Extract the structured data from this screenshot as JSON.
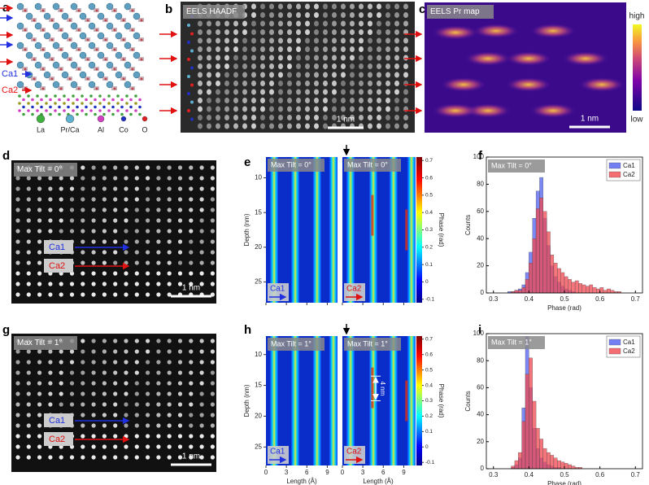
{
  "panel_labels": [
    "a",
    "b",
    "c",
    "d",
    "e",
    "f",
    "g",
    "h",
    "i"
  ],
  "structure_legend": [
    "La",
    "Pr/Ca",
    "Al",
    "Co",
    "O"
  ],
  "site_labels": [
    "Ca1",
    "Ca2"
  ],
  "image_titles": {
    "haadf": "EELS HAADF",
    "pr_map": "EELS Pr map"
  },
  "scale_bar": "1 nm",
  "pr_map_colorbar": {
    "high": "high",
    "low": "low"
  },
  "phase_maps": {
    "y_label": "Depth (nm)",
    "x_label": "Length (Å)",
    "colorbar_label": "Phase (rad)",
    "ylim": [
      7,
      28
    ],
    "yticks": [
      10,
      15,
      20,
      25
    ],
    "xlim": [
      0,
      10.5
    ],
    "xticks": [
      0,
      3,
      6,
      9
    ],
    "clim": [
      -0.12,
      0.72
    ],
    "cticks": [
      -0.1,
      0,
      0.1,
      0.2,
      0.3,
      0.4,
      0.5,
      0.6,
      0.7
    ],
    "annotation": "4 nm"
  },
  "chart_data": [
    {
      "type": "histogram",
      "title": "Max Tilt = 0°",
      "x_label": "Phase (rad)",
      "y_label": "Counts",
      "bins": [
        0.33,
        0.34,
        0.35,
        0.36,
        0.37,
        0.38,
        0.39,
        0.4,
        0.41,
        0.42,
        0.43,
        0.44,
        0.45,
        0.46,
        0.47,
        0.48,
        0.49,
        0.5,
        0.51,
        0.52,
        0.53,
        0.54,
        0.55,
        0.56,
        0.57,
        0.58,
        0.59,
        0.6,
        0.61,
        0.62,
        0.63,
        0.64,
        0.65,
        0.66,
        0.67
      ],
      "series": [
        {
          "name": "Ca1",
          "color": "#5060f0",
          "values": [
            0,
            1,
            1,
            2,
            3,
            6,
            15,
            30,
            55,
            75,
            85,
            55,
            35,
            20,
            12,
            8,
            5,
            3,
            2,
            1,
            0,
            0,
            0,
            0,
            0,
            0,
            0,
            0,
            0,
            0,
            0,
            0,
            0,
            0
          ]
        },
        {
          "name": "Ca2",
          "color": "#f04850",
          "values": [
            0,
            0,
            1,
            2,
            2,
            4,
            10,
            22,
            40,
            62,
            70,
            60,
            45,
            28,
            22,
            18,
            15,
            12,
            10,
            8,
            9,
            7,
            6,
            5,
            6,
            4,
            3,
            4,
            2,
            3,
            2,
            1,
            1,
            0
          ]
        }
      ],
      "xlim": [
        0.28,
        0.72
      ],
      "xticks": [
        0.3,
        0.4,
        0.5,
        0.6,
        0.7
      ],
      "ylim": [
        0,
        100
      ],
      "yticks": [
        0,
        20,
        40,
        60,
        80,
        100
      ],
      "legend": "upper right"
    },
    {
      "type": "histogram",
      "title": "Max Tilt = 1°",
      "x_label": "Phase (rad)",
      "y_label": "Counts",
      "bins": [
        0.33,
        0.34,
        0.35,
        0.36,
        0.37,
        0.38,
        0.39,
        0.4,
        0.41,
        0.42,
        0.43,
        0.44,
        0.45,
        0.46,
        0.47,
        0.48,
        0.49,
        0.5,
        0.51,
        0.52,
        0.53,
        0.54,
        0.55,
        0.56,
        0.57,
        0.58,
        0.59,
        0.6,
        0.61,
        0.62,
        0.63,
        0.64,
        0.65,
        0.66,
        0.67
      ],
      "series": [
        {
          "name": "Ca1",
          "color": "#5060f0",
          "values": [
            0,
            0,
            1,
            3,
            8,
            45,
            98,
            60,
            30,
            15,
            8,
            5,
            3,
            2,
            1,
            1,
            0,
            0,
            0,
            0,
            0,
            0,
            0,
            0,
            0,
            0,
            0,
            0,
            0,
            0,
            0,
            0,
            0,
            0
          ]
        },
        {
          "name": "Ca2",
          "color": "#f04850",
          "values": [
            0,
            0,
            2,
            6,
            12,
            35,
            70,
            82,
            50,
            30,
            22,
            15,
            12,
            10,
            8,
            6,
            5,
            4,
            3,
            2,
            1,
            1,
            0,
            0,
            0,
            0,
            0,
            0,
            0,
            0,
            0,
            0,
            0,
            0
          ]
        }
      ],
      "xlim": [
        0.28,
        0.72
      ],
      "xticks": [
        0.3,
        0.4,
        0.5,
        0.6,
        0.7
      ],
      "ylim": [
        0,
        100
      ],
      "yticks": [
        0,
        20,
        40,
        60,
        80,
        100
      ],
      "legend": "upper right"
    }
  ]
}
